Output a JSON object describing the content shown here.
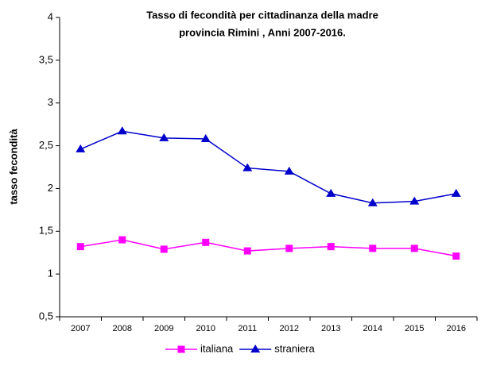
{
  "chart_data": {
    "type": "line",
    "title": "Tasso di fecondità per cittadinanza della madre",
    "subtitle": "provincia Rimini , Anni 2007-2016.",
    "y_label": "tasso fecondità",
    "categories": [
      "2007",
      "2008",
      "2009",
      "2010",
      "2011",
      "2012",
      "2013",
      "2014",
      "2015",
      "2016"
    ],
    "series": [
      {
        "name": "italiana",
        "color": "#ff00ff",
        "marker": "square",
        "values": [
          1.32,
          1.4,
          1.29,
          1.37,
          1.27,
          1.3,
          1.32,
          1.3,
          1.3,
          1.21
        ]
      },
      {
        "name": "straniera",
        "color": "#0000cc",
        "marker": "triangle",
        "values": [
          2.46,
          2.67,
          2.59,
          2.58,
          2.24,
          2.2,
          1.94,
          1.83,
          1.85,
          1.94
        ]
      }
    ],
    "ylim": [
      0.5,
      4
    ],
    "yticks": [
      {
        "value": 0.5,
        "label": "0,5"
      },
      1,
      {
        "value": 1.5,
        "label": "1,5"
      },
      2,
      {
        "value": 2.5,
        "label": "2,5"
      },
      3,
      {
        "value": 3.5,
        "label": "3,5"
      },
      4
    ],
    "grid": false,
    "legend": "bottom"
  }
}
